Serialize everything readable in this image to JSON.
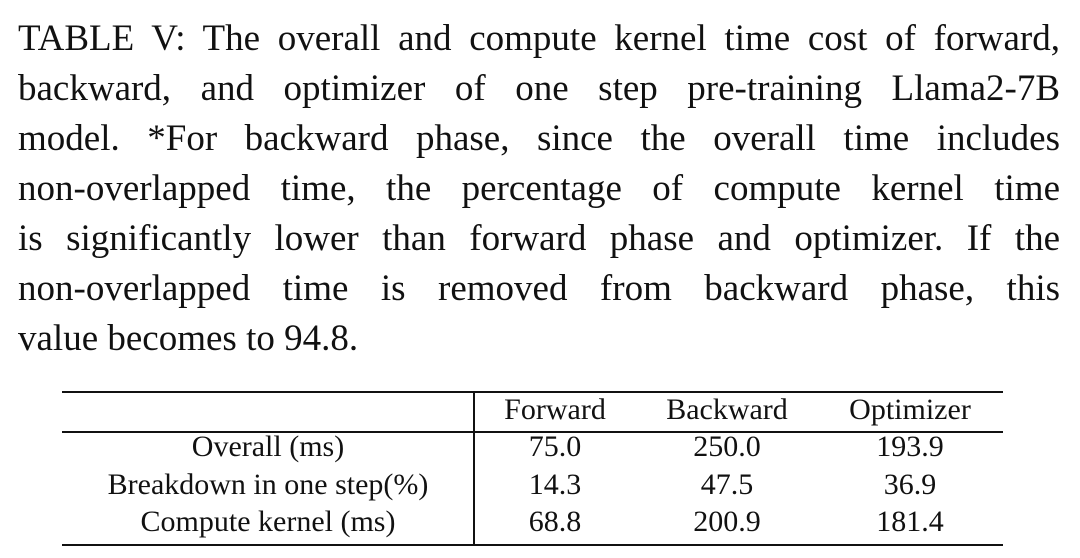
{
  "caption": {
    "lines": [
      "TABLE V: The overall and compute kernel time cost of forward,",
      "backward, and optimizer of one step pre-training Llama2-7B",
      "model. *For backward phase, since the overall time includes",
      "non-overlapped time, the percentage of compute kernel time",
      "is significantly lower than forward phase and optimizer. If the",
      "non-overlapped time is removed from backward phase, this",
      "value becomes to 94.8."
    ]
  },
  "table": {
    "columns": [
      "Forward",
      "Backward",
      "Optimizer"
    ],
    "rows": [
      [
        "Overall (ms)",
        "75.0",
        "250.0",
        "193.9"
      ],
      [
        "Breakdown in one step(%)",
        "14.3",
        "47.5",
        "36.9"
      ],
      [
        "Compute kernel (ms)",
        "68.8",
        "200.9",
        "181.4"
      ]
    ]
  }
}
